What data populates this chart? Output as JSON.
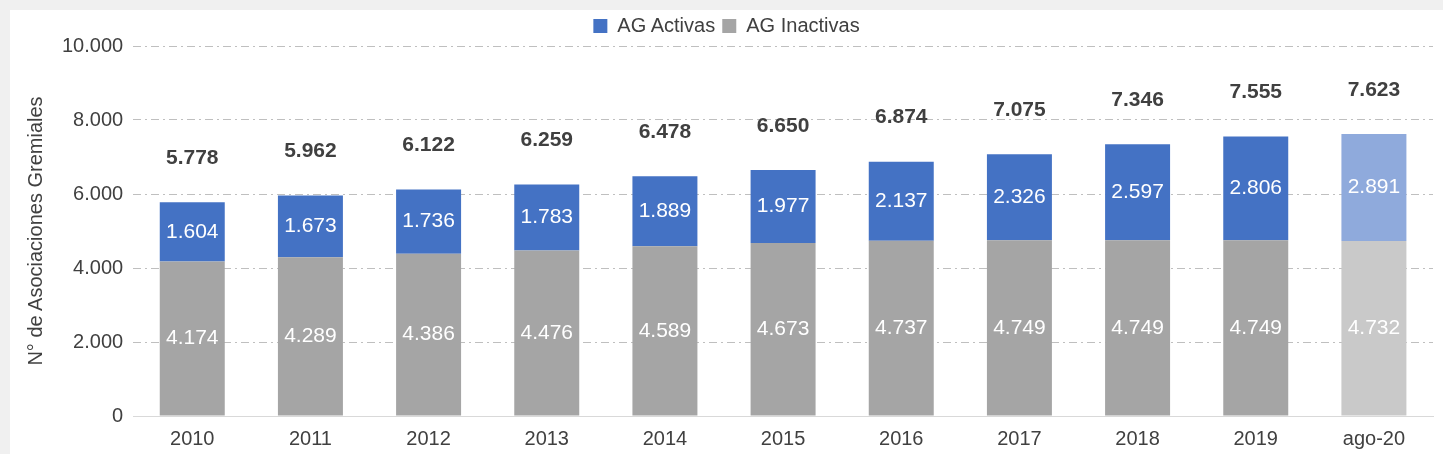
{
  "chart_data": {
    "type": "bar",
    "stacked": true,
    "ylabel": "N° de Asociaciones Gremiales",
    "categories": [
      "2010",
      "2011",
      "2012",
      "2013",
      "2014",
      "2015",
      "2016",
      "2017",
      "2018",
      "2019",
      "ago-20"
    ],
    "series": [
      {
        "name": "AG Inactivas",
        "color": "#a5a5a5",
        "colors": [
          "#a5a5a5",
          "#a5a5a5",
          "#a5a5a5",
          "#a5a5a5",
          "#a5a5a5",
          "#a5a5a5",
          "#a5a5a5",
          "#a5a5a5",
          "#a5a5a5",
          "#a5a5a5",
          "#c9c9c9"
        ],
        "values": [
          4174,
          4289,
          4386,
          4476,
          4589,
          4673,
          4737,
          4749,
          4749,
          4749,
          4732
        ],
        "value_labels": [
          "4.174",
          "4.289",
          "4.386",
          "4.476",
          "4.589",
          "4.673",
          "4.737",
          "4.749",
          "4.749",
          "4.749",
          "4.732"
        ]
      },
      {
        "name": "AG Activas",
        "color": "#4472c4",
        "colors": [
          "#4472c4",
          "#4472c4",
          "#4472c4",
          "#4472c4",
          "#4472c4",
          "#4472c4",
          "#4472c4",
          "#4472c4",
          "#4472c4",
          "#4472c4",
          "#8faadc"
        ],
        "values": [
          1604,
          1673,
          1736,
          1783,
          1889,
          1977,
          2137,
          2326,
          2597,
          2806,
          2891
        ],
        "value_labels": [
          "1.604",
          "1.673",
          "1.736",
          "1.783",
          "1.889",
          "1.977",
          "2.137",
          "2.326",
          "2.597",
          "2.806",
          "2.891"
        ]
      }
    ],
    "totals": [
      "5.778",
      "5.962",
      "6.122",
      "6.259",
      "6.478",
      "6.650",
      "6.874",
      "7.075",
      "7.346",
      "7.555",
      "7.623"
    ],
    "ylim": [
      0,
      10000
    ],
    "yticks": [
      {
        "value": 0,
        "label": "0"
      },
      {
        "value": 2000,
        "label": "2.000"
      },
      {
        "value": 4000,
        "label": "4.000"
      },
      {
        "value": 6000,
        "label": "6.000"
      },
      {
        "value": 8000,
        "label": "8.000"
      },
      {
        "value": 10000,
        "label": "10.000"
      }
    ],
    "grid": "y",
    "legend": "top"
  }
}
